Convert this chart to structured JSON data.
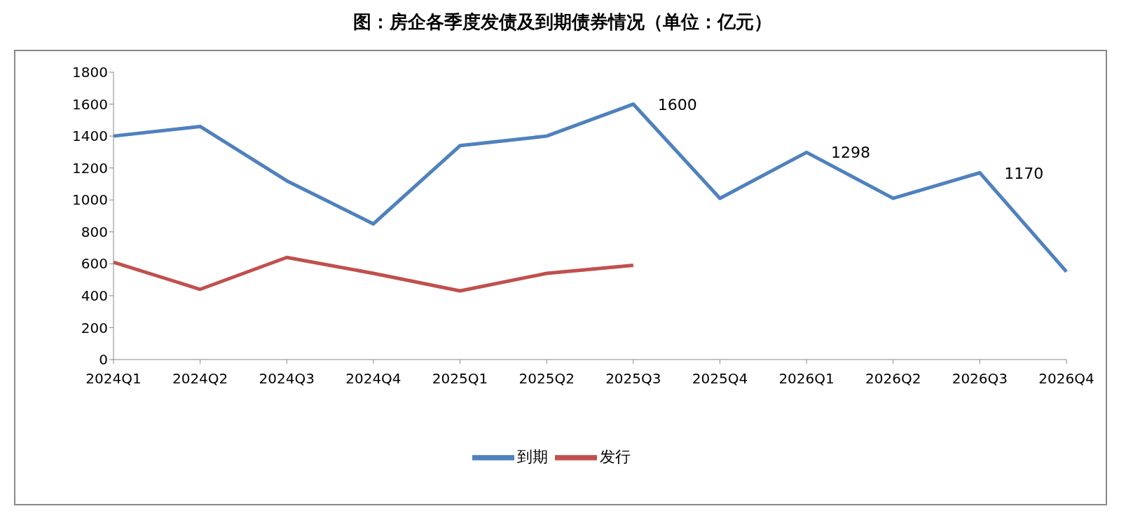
{
  "chart_data": {
    "type": "line",
    "title": "图：房企各季度发债及到期债券情况（单位：亿元）",
    "categories": [
      "2024Q1",
      "2024Q2",
      "2024Q3",
      "2024Q4",
      "2025Q1",
      "2025Q2",
      "2025Q3",
      "2025Q4",
      "2026Q1",
      "2026Q2",
      "2026Q3",
      "2026Q4"
    ],
    "series": [
      {
        "name": "到期",
        "color": "#4f81bd",
        "values": [
          1400,
          1460,
          1120,
          850,
          1340,
          1400,
          1600,
          1010,
          1298,
          1010,
          1170,
          550
        ],
        "value_labels": [
          null,
          null,
          null,
          null,
          null,
          null,
          "1600",
          null,
          "1298",
          null,
          "1170",
          null
        ]
      },
      {
        "name": "发行",
        "color": "#c0504d",
        "values": [
          610,
          440,
          640,
          540,
          430,
          540,
          590,
          null,
          null,
          null,
          null,
          null
        ]
      }
    ],
    "ylim": [
      0,
      1800
    ],
    "yticks": [
      0,
      200,
      400,
      600,
      800,
      1000,
      1200,
      1400,
      1600,
      1800
    ],
    "grid": false,
    "legend": "bottom",
    "marker": "none",
    "line_style": "solid"
  }
}
